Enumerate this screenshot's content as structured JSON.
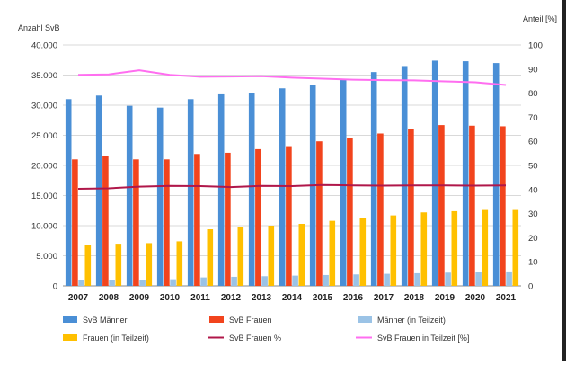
{
  "chart_data": {
    "type": "bar",
    "ylabel_left": "Anzahl SvB",
    "ylabel_right": "Anteil [%]",
    "ylim_left": [
      0,
      40000
    ],
    "ylim_right": [
      0,
      100
    ],
    "yticks_left": [
      "0",
      "5.000",
      "10.000",
      "15.000",
      "20.000",
      "25.000",
      "30.000",
      "35.000",
      "40.000"
    ],
    "yticks_right": [
      "0",
      "10",
      "20",
      "30",
      "40",
      "50",
      "60",
      "70",
      "80",
      "90",
      "100"
    ],
    "grid": true,
    "legend_position": "bottom",
    "categories": [
      "2007",
      "2008",
      "2009",
      "2010",
      "2011",
      "2012",
      "2013",
      "2014",
      "2015",
      "2016",
      "2017",
      "2018",
      "2019",
      "2020",
      "2021"
    ],
    "bar_series": [
      {
        "name": "SvB Männer",
        "color": "#4a8fd6",
        "values": [
          31000,
          31600,
          29900,
          29600,
          31000,
          31800,
          32000,
          32800,
          33300,
          34300,
          35500,
          36500,
          37400,
          37300,
          37000
        ]
      },
      {
        "name": "SvB Frauen",
        "color": "#f2441d",
        "values": [
          21000,
          21500,
          21000,
          21000,
          21900,
          22100,
          22700,
          23200,
          24000,
          24500,
          25300,
          26100,
          26700,
          26600,
          26500
        ]
      },
      {
        "name": "Männer (in Teilzeit)",
        "color": "#9bc3e6",
        "values": [
          1000,
          1000,
          900,
          1100,
          1400,
          1500,
          1600,
          1700,
          1800,
          1900,
          2000,
          2100,
          2200,
          2300,
          2400
        ]
      },
      {
        "name": "Frauen (in Teilzeit)",
        "color": "#ffc000",
        "values": [
          6800,
          7000,
          7100,
          7400,
          9400,
          9800,
          10000,
          10300,
          10800,
          11300,
          11700,
          12200,
          12400,
          12600,
          12600
        ]
      }
    ],
    "line_series": [
      {
        "name": "SvB Frauen %",
        "color": "#b0174a",
        "values": [
          40.3,
          40.5,
          41.2,
          41.5,
          41.4,
          41.0,
          41.5,
          41.4,
          41.9,
          41.7,
          41.6,
          41.7,
          41.7,
          41.6,
          41.7
        ]
      },
      {
        "name": "SvB Frauen in Teilzeit [%]",
        "color": "#ff6ef0",
        "values": [
          87.6,
          87.8,
          89.5,
          87.6,
          86.8,
          86.9,
          87.0,
          86.4,
          86.0,
          85.6,
          85.4,
          85.3,
          84.9,
          84.5,
          83.4
        ]
      }
    ],
    "legend": [
      {
        "name": "SvB Männer",
        "kind": "bar",
        "color": "#4a8fd6"
      },
      {
        "name": "SvB Frauen",
        "kind": "bar",
        "color": "#f2441d"
      },
      {
        "name": "Männer (in Teilzeit)",
        "kind": "bar",
        "color": "#9bc3e6"
      },
      {
        "name": "Frauen (in Teilzeit)",
        "kind": "bar",
        "color": "#ffc000"
      },
      {
        "name": "SvB Frauen %",
        "kind": "line",
        "color": "#b0174a"
      },
      {
        "name": "SvB Frauen in Teilzeit [%]",
        "kind": "line",
        "color": "#ff6ef0"
      }
    ]
  }
}
